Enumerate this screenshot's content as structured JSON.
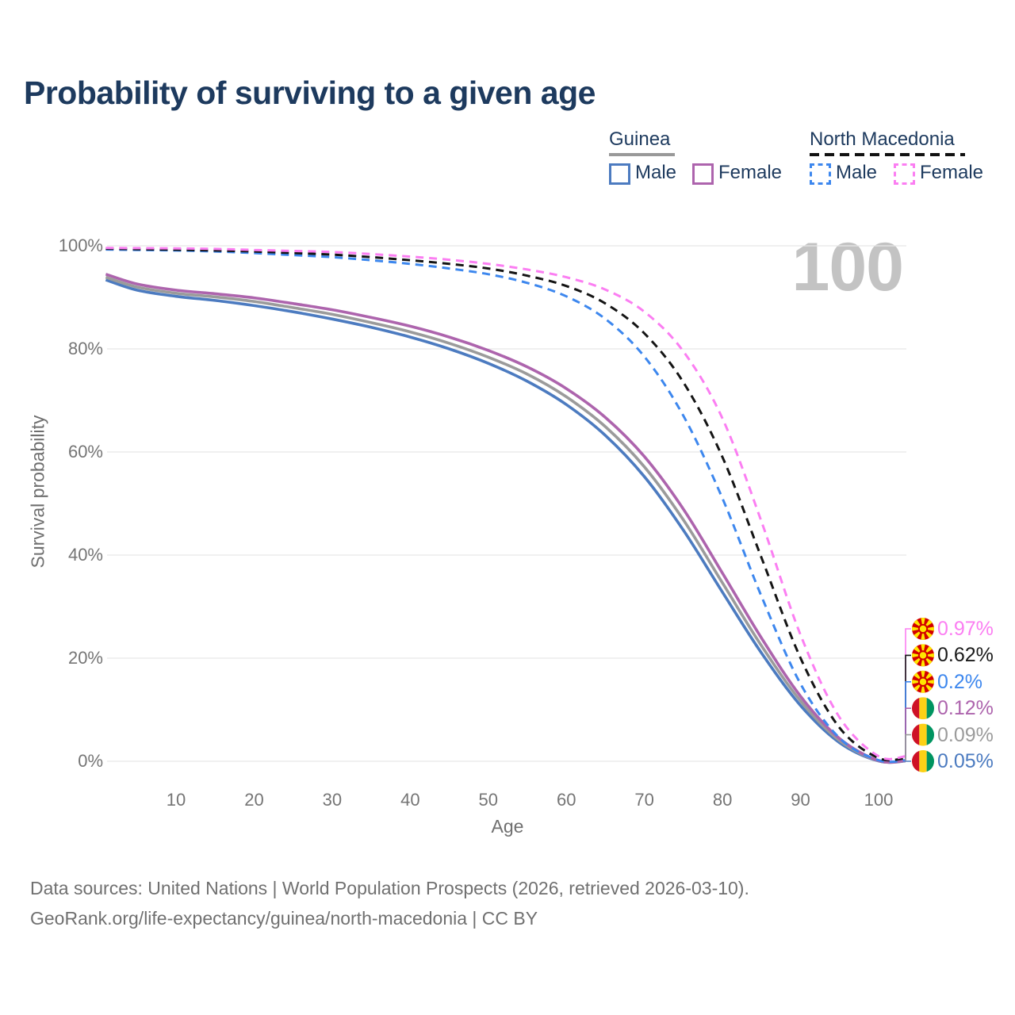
{
  "header": {
    "title": "Probability of surviving to a given age",
    "title_color": "#1d3a5e"
  },
  "legend": {
    "groups": [
      {
        "id": "guinea",
        "name": "Guinea",
        "underline_style": "solid",
        "underline_color": "#999999",
        "items": [
          {
            "id": "guinea_male",
            "label": "Male",
            "box_color": "#4c7bc0",
            "box_style": "solid"
          },
          {
            "id": "guinea_female",
            "label": "Female",
            "box_color": "#ad64ad",
            "box_style": "solid"
          }
        ]
      },
      {
        "id": "north_macedonia",
        "name": "North Macedonia",
        "underline_style": "dashed",
        "underline_color": "#111111",
        "items": [
          {
            "id": "nm_male",
            "label": "Male",
            "box_color": "#3d87ee",
            "box_style": "dashed"
          },
          {
            "id": "nm_female",
            "label": "Female",
            "box_color": "#fb7ef2",
            "box_style": "dashed"
          }
        ]
      }
    ]
  },
  "chart_data": {
    "type": "line",
    "title": "Probability of surviving to a given age",
    "xlabel": "Age",
    "ylabel": "Survival probability",
    "xlim": [
      1,
      103
    ],
    "ylim": [
      0,
      100
    ],
    "grid": "horizontal",
    "gridline_color": "#e7e7e7",
    "legend_position": "top-right",
    "hover_value": "100",
    "x": [
      1,
      5,
      10,
      15,
      20,
      25,
      30,
      35,
      40,
      45,
      50,
      55,
      60,
      65,
      70,
      75,
      80,
      85,
      90,
      95,
      100
    ],
    "x_ticks": [
      {
        "v": 10,
        "label": "10"
      },
      {
        "v": 20,
        "label": "20"
      },
      {
        "v": 30,
        "label": "30"
      },
      {
        "v": 40,
        "label": "40"
      },
      {
        "v": 50,
        "label": "50"
      },
      {
        "v": 60,
        "label": "60"
      },
      {
        "v": 70,
        "label": "70"
      },
      {
        "v": 80,
        "label": "80"
      },
      {
        "v": 90,
        "label": "90"
      },
      {
        "v": 100,
        "label": "100"
      }
    ],
    "y_ticks": [
      {
        "v": 0,
        "label": "0%"
      },
      {
        "v": 20,
        "label": "20%"
      },
      {
        "v": 40,
        "label": "40%"
      },
      {
        "v": 60,
        "label": "60%"
      },
      {
        "v": 80,
        "label": "80%"
      },
      {
        "v": 100,
        "label": "100%"
      }
    ],
    "series": [
      {
        "id": "guinea_male",
        "name": "Guinea Male",
        "color": "#4c7bc0",
        "dash": false,
        "values": [
          93.4,
          91.4,
          90.2,
          89.4,
          88.4,
          87.2,
          85.8,
          84.2,
          82.3,
          80.0,
          77.2,
          73.7,
          69.2,
          63.2,
          55.2,
          44.8,
          32.8,
          21.0,
          10.8,
          3.6,
          0.05
        ]
      },
      {
        "id": "guinea_both",
        "name": "Guinea",
        "color": "#9b9b9b",
        "dash": false,
        "values": [
          93.9,
          92.0,
          90.8,
          90.1,
          89.2,
          88.0,
          86.7,
          85.1,
          83.3,
          81.1,
          78.4,
          75.1,
          70.7,
          64.9,
          57.1,
          46.8,
          34.6,
          22.4,
          11.7,
          4.0,
          0.09
        ]
      },
      {
        "id": "guinea_female",
        "name": "Guinea Female",
        "color": "#ad64ad",
        "dash": false,
        "values": [
          94.5,
          92.6,
          91.4,
          90.7,
          89.9,
          88.8,
          87.6,
          86.1,
          84.4,
          82.3,
          79.7,
          76.5,
          72.3,
          66.7,
          59.1,
          48.9,
          36.5,
          23.9,
          12.6,
          4.4,
          0.12
        ]
      },
      {
        "id": "nm_male",
        "name": "North Macedonia Male",
        "color": "#3d87ee",
        "dash": true,
        "values": [
          99.3,
          99.2,
          99.1,
          98.9,
          98.6,
          98.2,
          97.8,
          97.2,
          96.5,
          95.6,
          94.5,
          92.8,
          90.2,
          85.8,
          78.5,
          67.0,
          51.0,
          32.0,
          15.0,
          4.5,
          0.2
        ]
      },
      {
        "id": "nm_both",
        "name": "North Macedonia",
        "color": "#141414",
        "dash": true,
        "values": [
          99.45,
          99.35,
          99.25,
          99.1,
          98.9,
          98.6,
          98.3,
          97.8,
          97.2,
          96.5,
          95.6,
          94.2,
          92.2,
          88.8,
          83.0,
          73.5,
          59.0,
          39.5,
          20.0,
          6.5,
          0.62
        ]
      },
      {
        "id": "nm_female",
        "name": "North Macedonia Female",
        "color": "#fb7ef2",
        "dash": true,
        "values": [
          99.6,
          99.55,
          99.5,
          99.4,
          99.2,
          99.0,
          98.8,
          98.4,
          97.9,
          97.3,
          96.5,
          95.4,
          93.9,
          91.5,
          87.2,
          79.5,
          66.5,
          46.5,
          24.5,
          8.5,
          0.97
        ]
      }
    ],
    "end_labels": [
      {
        "series": "nm_female",
        "text": "0.97%",
        "color": "#fb7ef2",
        "flag": "north-macedonia"
      },
      {
        "series": "nm_both",
        "text": "0.62%",
        "color": "#1a1a1a",
        "flag": "north-macedonia"
      },
      {
        "series": "nm_male",
        "text": "0.2%",
        "color": "#3d87ee",
        "flag": "north-macedonia"
      },
      {
        "series": "guinea_female",
        "text": "0.12%",
        "color": "#ad64ad",
        "flag": "guinea"
      },
      {
        "series": "guinea_both",
        "text": "0.09%",
        "color": "#9b9b9b",
        "flag": "guinea"
      },
      {
        "series": "guinea_male",
        "text": "0.05%",
        "color": "#4c7bc0",
        "flag": "guinea"
      }
    ],
    "flag_colors": {
      "north-macedonia": {
        "red": "#d20000",
        "yellow": "#ffe600"
      },
      "guinea": {
        "red": "#ce1126",
        "yellow": "#fcd116",
        "green": "#009460"
      }
    }
  },
  "footer": {
    "line1": "Data sources: United Nations | World Population Prospects (2026, retrieved 2026-03-10).",
    "line2": "GeoRank.org/life-expectancy/guinea/north-macedonia | CC BY"
  }
}
